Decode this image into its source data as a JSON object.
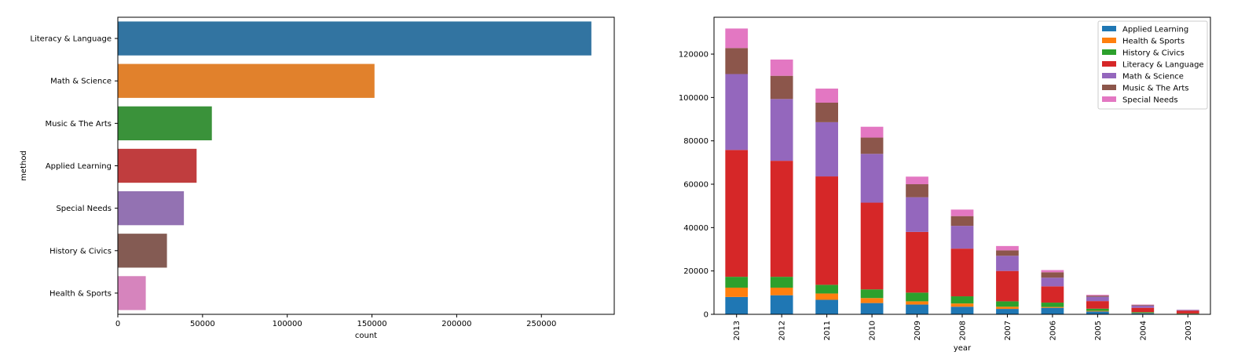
{
  "chart_data": [
    {
      "type": "bar",
      "orientation": "horizontal",
      "categories": [
        "Literacy & Language",
        "Math & Science",
        "Music & The Arts",
        "Applied Learning",
        "Special Needs",
        "History & Civics",
        "Health & Sports"
      ],
      "values": [
        279500,
        151500,
        55500,
        46500,
        39000,
        29000,
        16500
      ],
      "colors": [
        "#3274a1",
        "#e1812c",
        "#3a923a",
        "#c03d3e",
        "#9372b2",
        "#845b53",
        "#d684bd"
      ],
      "xlabel": "count",
      "ylabel": "method",
      "xlim": [
        0,
        293000
      ],
      "xticks": [
        "0",
        "50000",
        "100000",
        "150000",
        "200000",
        "250000"
      ],
      "grid": false
    },
    {
      "type": "bar",
      "stacked": true,
      "categories": [
        "2013",
        "2012",
        "2011",
        "2010",
        "2009",
        "2008",
        "2007",
        "2006",
        "2005",
        "2004",
        "2003"
      ],
      "series": [
        {
          "name": "Applied Learning",
          "color": "#1f77b4",
          "values": [
            8000,
            8800,
            6700,
            5200,
            4500,
            3500,
            2500,
            3000,
            1300,
            500,
            200
          ]
        },
        {
          "name": "Health & Sports",
          "color": "#ff7f0e",
          "values": [
            4300,
            3500,
            2900,
            2300,
            1500,
            1500,
            1000,
            400,
            300,
            100,
            50
          ]
        },
        {
          "name": "History & Civics",
          "color": "#2ca02c",
          "values": [
            5000,
            5000,
            4000,
            4000,
            4000,
            3300,
            2500,
            2000,
            1000,
            400,
            150
          ]
        },
        {
          "name": "Literacy & Language",
          "color": "#d62728",
          "values": [
            58500,
            53500,
            50000,
            40000,
            28000,
            22000,
            14000,
            7500,
            3500,
            2000,
            1300
          ]
        },
        {
          "name": "Math & Science",
          "color": "#9467bd",
          "values": [
            35000,
            28500,
            25000,
            22500,
            16000,
            10500,
            7000,
            4000,
            2000,
            1000,
            300
          ]
        },
        {
          "name": "Music & The Arts",
          "color": "#8c564b",
          "values": [
            12000,
            10700,
            9000,
            7500,
            6000,
            4500,
            2500,
            2500,
            500,
            300,
            50
          ]
        },
        {
          "name": "Special Needs",
          "color": "#e377c2",
          "values": [
            9000,
            7500,
            6500,
            5000,
            3500,
            3000,
            2000,
            1000,
            400,
            200,
            50
          ]
        }
      ],
      "xlabel": "year",
      "ylabel": "",
      "ylim": [
        0,
        137000
      ],
      "yticks": [
        "0",
        "20000",
        "40000",
        "60000",
        "80000",
        "100000",
        "120000"
      ],
      "legend_position": "top-right",
      "grid": false
    }
  ]
}
